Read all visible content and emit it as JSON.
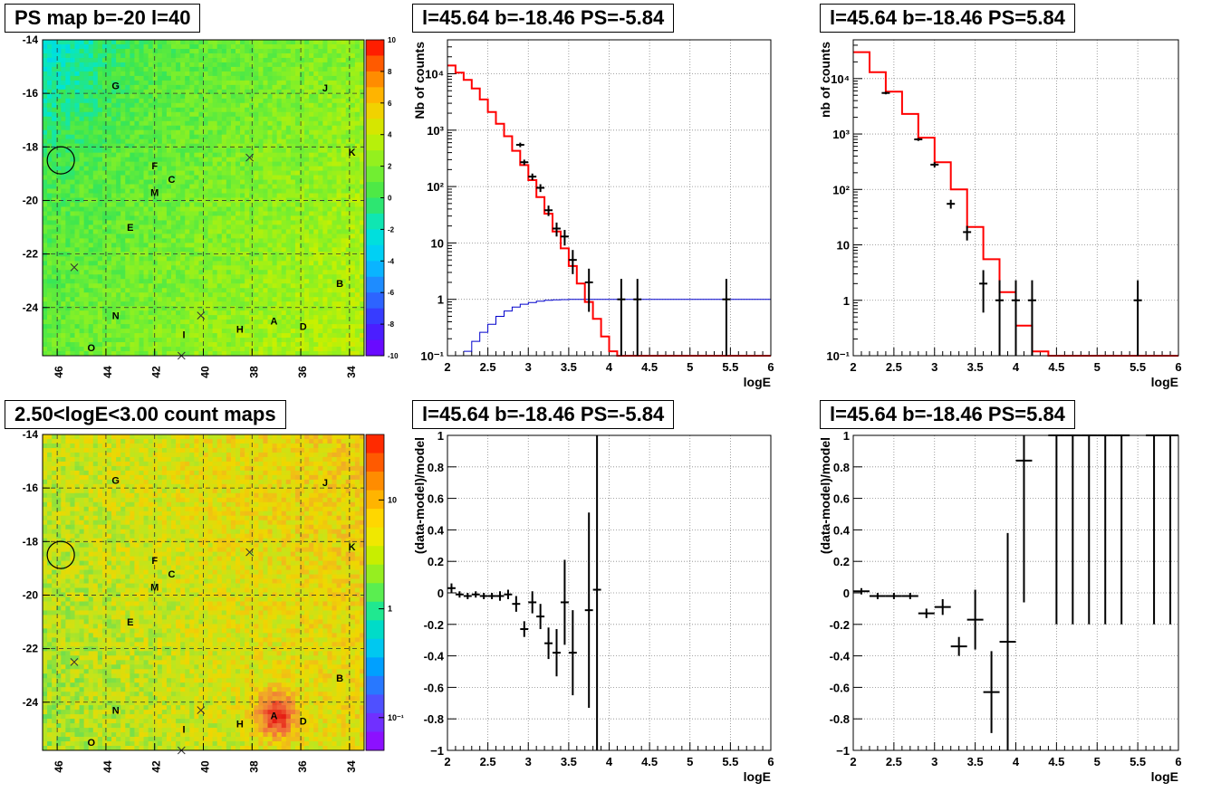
{
  "titles": {
    "ps_map": "PS map b=-20 l=40",
    "count_map": "2.50<logE<3.00 count maps",
    "spec_neg": "l=45.64 b=-18.46 PS=-5.84",
    "spec_pos": "l=45.64 b=-18.46 PS=5.84",
    "resid_neg": "l=45.64 b=-18.46 PS=-5.84",
    "resid_pos": "l=45.64 b=-18.46 PS=5.84"
  },
  "colors": {
    "model_line": "#ff0000",
    "exposure_line": "#0000cc",
    "data_marks": "#000000"
  },
  "chart_data": [
    {
      "id": "ps_map",
      "type": "heatmap",
      "x_ticks": [
        "46",
        "44",
        "42",
        "40",
        "38",
        "36",
        "34"
      ],
      "y_ticks": [
        "-14",
        "-16",
        "-18",
        "-20",
        "-22",
        "-24"
      ],
      "xlim": [
        46.6,
        33.4
      ],
      "ylim": [
        -25.8,
        -14
      ],
      "z_ticks": [
        "10",
        "8",
        "6",
        "4",
        "2",
        "0",
        "-2",
        "-4",
        "-6",
        "-8",
        "-10"
      ],
      "zlim": [
        -10,
        10
      ],
      "sources": [
        {
          "label": "G",
          "l": 43.6,
          "b": -15.7
        },
        {
          "label": "J",
          "l": 35.0,
          "b": -15.8
        },
        {
          "label": "K",
          "l": 33.9,
          "b": -18.2
        },
        {
          "label": "F",
          "l": 42.0,
          "b": -18.7
        },
        {
          "label": "C",
          "l": 41.3,
          "b": -19.2
        },
        {
          "label": "M",
          "l": 42.0,
          "b": -19.7
        },
        {
          "label": "E",
          "l": 43.0,
          "b": -21.0
        },
        {
          "label": "B",
          "l": 34.4,
          "b": -23.1
        },
        {
          "label": "N",
          "l": 43.6,
          "b": -24.3
        },
        {
          "label": "A",
          "l": 37.1,
          "b": -24.5
        },
        {
          "label": "D",
          "l": 35.9,
          "b": -24.7
        },
        {
          "label": "H",
          "l": 38.5,
          "b": -24.8
        },
        {
          "label": "I",
          "l": 40.8,
          "b": -25.0
        },
        {
          "label": "O",
          "l": 44.6,
          "b": -25.5
        }
      ],
      "crosses": [
        {
          "l": 38.1,
          "b": -18.4
        },
        {
          "l": 45.3,
          "b": -22.5
        },
        {
          "l": 40.1,
          "b": -24.3
        },
        {
          "l": 40.9,
          "b": -25.8
        }
      ],
      "circle": {
        "l": 46.0,
        "b": -18.5
      }
    },
    {
      "id": "count_map",
      "type": "heatmap",
      "x_ticks": [
        "46",
        "44",
        "42",
        "40",
        "38",
        "36",
        "34"
      ],
      "y_ticks": [
        "-14",
        "-16",
        "-18",
        "-20",
        "-22",
        "-24"
      ],
      "xlim": [
        46.6,
        33.4
      ],
      "ylim": [
        -25.8,
        -14
      ],
      "z_ticks": [
        "10",
        "1",
        "10⁻¹"
      ],
      "zscale": "log",
      "zlim": [
        0.05,
        40
      ],
      "hotspot": {
        "l": 37.1,
        "b": -24.4
      },
      "sources": [
        {
          "label": "G",
          "l": 43.6,
          "b": -15.7
        },
        {
          "label": "J",
          "l": 35.0,
          "b": -15.8
        },
        {
          "label": "K",
          "l": 33.9,
          "b": -18.2
        },
        {
          "label": "F",
          "l": 42.0,
          "b": -18.7
        },
        {
          "label": "C",
          "l": 41.3,
          "b": -19.2
        },
        {
          "label": "M",
          "l": 42.0,
          "b": -19.7
        },
        {
          "label": "E",
          "l": 43.0,
          "b": -21.0
        },
        {
          "label": "B",
          "l": 34.4,
          "b": -23.1
        },
        {
          "label": "N",
          "l": 43.6,
          "b": -24.3
        },
        {
          "label": "A",
          "l": 37.1,
          "b": -24.5
        },
        {
          "label": "D",
          "l": 35.9,
          "b": -24.7
        },
        {
          "label": "H",
          "l": 38.5,
          "b": -24.8
        },
        {
          "label": "I",
          "l": 40.8,
          "b": -25.0
        },
        {
          "label": "O",
          "l": 44.6,
          "b": -25.5
        }
      ],
      "crosses": [
        {
          "l": 38.1,
          "b": -18.4
        },
        {
          "l": 45.3,
          "b": -22.5
        },
        {
          "l": 40.1,
          "b": -24.3
        },
        {
          "l": 40.9,
          "b": -25.8
        }
      ],
      "circle": {
        "l": 46.0,
        "b": -18.5
      }
    },
    {
      "id": "spec_neg",
      "type": "line",
      "yscale": "log",
      "xlim": [
        2,
        6
      ],
      "ylim": [
        0.1,
        40000
      ],
      "x_ticks": [
        "2",
        "2.5",
        "3",
        "3.5",
        "4",
        "4.5",
        "5",
        "5.5",
        "6"
      ],
      "y_ticks": [
        {
          "v": 10000,
          "t": "10⁴"
        },
        {
          "v": 1000,
          "t": "10³"
        },
        {
          "v": 100,
          "t": "10²"
        },
        {
          "v": 10,
          "t": "10"
        },
        {
          "v": 1,
          "t": "1"
        },
        {
          "v": 0.1,
          "t": "10⁻¹"
        }
      ],
      "xlabel": "logE",
      "ylabel": "Nb of counts",
      "model_step": {
        "edges": [
          2,
          2.1,
          2.2,
          2.3,
          2.4,
          2.5,
          2.6,
          2.7,
          2.8,
          2.9,
          3,
          3.1,
          3.2,
          3.3,
          3.4,
          3.5,
          3.6,
          3.7,
          3.8,
          3.9,
          4,
          4.1,
          4.2,
          6
        ],
        "values": [
          14000,
          10500,
          7800,
          5500,
          3500,
          2100,
          1300,
          780,
          430,
          240,
          130,
          65,
          33,
          16,
          8,
          3.9,
          1.9,
          0.9,
          0.45,
          0.22,
          0.12,
          0.1,
          0.1
        ]
      },
      "exposure_step": {
        "edges": [
          2.2,
          2.3,
          2.4,
          2.5,
          2.6,
          2.7,
          2.8,
          2.9,
          3,
          3.1,
          3.2,
          3.3,
          3.4,
          3.5,
          3.6,
          6
        ],
        "values": [
          0.12,
          0.18,
          0.26,
          0.36,
          0.5,
          0.62,
          0.73,
          0.82,
          0.88,
          0.93,
          0.96,
          0.98,
          0.99,
          1,
          1,
          1
        ]
      },
      "points": [
        {
          "x": 2.9,
          "y": 550,
          "lo": 500,
          "hi": 600
        },
        {
          "x": 2.95,
          "y": 270,
          "lo": 240,
          "hi": 300
        },
        {
          "x": 3.05,
          "y": 150,
          "lo": 130,
          "hi": 170
        },
        {
          "x": 3.15,
          "y": 95,
          "lo": 80,
          "hi": 110
        },
        {
          "x": 3.25,
          "y": 38,
          "lo": 30,
          "hi": 46
        },
        {
          "x": 3.35,
          "y": 18,
          "lo": 13,
          "hi": 23
        },
        {
          "x": 3.45,
          "y": 13,
          "lo": 9,
          "hi": 17
        },
        {
          "x": 3.55,
          "y": 5,
          "lo": 2.8,
          "hi": 7.5
        },
        {
          "x": 3.75,
          "y": 2,
          "lo": 0.6,
          "hi": 3.5
        },
        {
          "x": 4.15,
          "y": 1,
          "lo": 0.1,
          "hi": 2.3
        },
        {
          "x": 4.35,
          "y": 1,
          "lo": 0.1,
          "hi": 2.3
        },
        {
          "x": 5.45,
          "y": 1,
          "lo": 0.1,
          "hi": 2.3
        }
      ]
    },
    {
      "id": "spec_pos",
      "type": "line",
      "yscale": "log",
      "xlim": [
        2,
        6
      ],
      "ylim": [
        0.1,
        50000
      ],
      "x_ticks": [
        "2",
        "2.5",
        "3",
        "3.5",
        "4",
        "4.5",
        "5",
        "5.5",
        "6"
      ],
      "y_ticks": [
        {
          "v": 10000,
          "t": "10⁴"
        },
        {
          "v": 1000,
          "t": "10³"
        },
        {
          "v": 100,
          "t": "10²"
        },
        {
          "v": 10,
          "t": "10"
        },
        {
          "v": 1,
          "t": "1"
        },
        {
          "v": 0.1,
          "t": "10⁻¹"
        }
      ],
      "xlabel": "logE",
      "ylabel": "nb of counts",
      "model_step": {
        "edges": [
          2,
          2.2,
          2.4,
          2.6,
          2.8,
          3,
          3.2,
          3.4,
          3.6,
          3.8,
          4,
          4.2,
          4.4,
          6
        ],
        "values": [
          30000,
          13000,
          5800,
          2300,
          860,
          310,
          100,
          21,
          5.5,
          1.4,
          0.35,
          0.12,
          0.1
        ]
      },
      "points": [
        {
          "x": 2.4,
          "y": 5500,
          "lo": 5200,
          "hi": 5800
        },
        {
          "x": 2.8,
          "y": 800,
          "lo": 750,
          "hi": 850
        },
        {
          "x": 3.0,
          "y": 280,
          "lo": 250,
          "hi": 310
        },
        {
          "x": 3.2,
          "y": 55,
          "lo": 45,
          "hi": 65
        },
        {
          "x": 3.4,
          "y": 17,
          "lo": 12,
          "hi": 22
        },
        {
          "x": 3.6,
          "y": 2,
          "lo": 0.6,
          "hi": 3.5
        },
        {
          "x": 3.8,
          "y": 1,
          "lo": 0.1,
          "hi": 2.3
        },
        {
          "x": 4.0,
          "y": 1,
          "lo": 0.1,
          "hi": 2.3
        },
        {
          "x": 4.2,
          "y": 1,
          "lo": 0.1,
          "hi": 2.3
        },
        {
          "x": 5.5,
          "y": 1,
          "lo": 0.1,
          "hi": 2.3
        }
      ]
    },
    {
      "id": "resid_neg",
      "type": "scatter",
      "xlim": [
        2,
        6
      ],
      "ylim": [
        -1,
        1
      ],
      "x_ticks": [
        "2",
        "2.5",
        "3",
        "3.5",
        "4",
        "4.5",
        "5",
        "5.5",
        "6"
      ],
      "y_ticks": [
        "1",
        "0.8",
        "0.6",
        "0.4",
        "0.2",
        "0",
        "-0.2",
        "-0.4",
        "-0.6",
        "-0.8",
        "−1"
      ],
      "xlabel": "logE",
      "ylabel": "(data-model)/model",
      "xhalf": 0.05,
      "points": [
        {
          "x": 2.05,
          "y": 0.03,
          "e": 0.03
        },
        {
          "x": 2.15,
          "y": -0.01,
          "e": 0.02
        },
        {
          "x": 2.25,
          "y": -0.02,
          "e": 0.02
        },
        {
          "x": 2.35,
          "y": -0.01,
          "e": 0.02
        },
        {
          "x": 2.45,
          "y": -0.02,
          "e": 0.02
        },
        {
          "x": 2.55,
          "y": -0.02,
          "e": 0.02
        },
        {
          "x": 2.65,
          "y": -0.02,
          "e": 0.03
        },
        {
          "x": 2.75,
          "y": -0.01,
          "e": 0.03
        },
        {
          "x": 2.85,
          "y": -0.07,
          "e": 0.05
        },
        {
          "x": 2.95,
          "y": -0.23,
          "e": 0.05
        },
        {
          "x": 3.05,
          "y": -0.06,
          "e": 0.07
        },
        {
          "x": 3.15,
          "y": -0.15,
          "e": 0.08
        },
        {
          "x": 3.25,
          "y": -0.32,
          "e": 0.1
        },
        {
          "x": 3.35,
          "y": -0.38,
          "e": 0.15
        },
        {
          "x": 3.45,
          "y": -0.06,
          "e": 0.27
        },
        {
          "x": 3.55,
          "y": -0.38,
          "e": 0.27
        },
        {
          "x": 3.75,
          "y": -0.11,
          "e": 0.62
        },
        {
          "x": 3.85,
          "y": 0.02,
          "e": 1.05
        }
      ]
    },
    {
      "id": "resid_pos",
      "type": "scatter",
      "xlim": [
        2,
        6
      ],
      "ylim": [
        -1,
        1
      ],
      "x_ticks": [
        "2",
        "2.5",
        "3",
        "3.5",
        "4",
        "4.5",
        "5",
        "5.5",
        "6"
      ],
      "y_ticks": [
        "1",
        "0.8",
        "0.6",
        "0.4",
        "0.2",
        "0",
        "-0.2",
        "-0.4",
        "-0.6",
        "-0.8",
        "−1"
      ],
      "xlabel": "logE",
      "ylabel": "(data-model)/model",
      "xhalf": 0.1,
      "points": [
        {
          "x": 2.1,
          "y": 0.01,
          "e": 0.02
        },
        {
          "x": 2.3,
          "y": -0.02,
          "e": 0.02
        },
        {
          "x": 2.5,
          "y": -0.02,
          "e": 0.02
        },
        {
          "x": 2.7,
          "y": -0.02,
          "e": 0.02
        },
        {
          "x": 2.9,
          "y": -0.13,
          "e": 0.03
        },
        {
          "x": 3.1,
          "y": -0.09,
          "e": 0.05
        },
        {
          "x": 3.3,
          "y": -0.34,
          "e": 0.06
        },
        {
          "x": 3.5,
          "y": -0.17,
          "e": 0.19
        },
        {
          "x": 3.7,
          "y": -0.63,
          "e": 0.26
        },
        {
          "x": 3.9,
          "y": -0.31,
          "e": 0.69
        },
        {
          "x": 4.1,
          "y": 0.84,
          "e": 0.9
        },
        {
          "x": 4.5,
          "y": 1,
          "e": 1.2
        },
        {
          "x": 4.7,
          "y": 1,
          "e": 1.2
        },
        {
          "x": 4.9,
          "y": 1,
          "e": 1.2
        },
        {
          "x": 5.1,
          "y": 1,
          "e": 1.2
        },
        {
          "x": 5.3,
          "y": 1,
          "e": 1.2
        },
        {
          "x": 5.7,
          "y": 1,
          "e": 1.2
        },
        {
          "x": 5.9,
          "y": 1,
          "e": 1.2
        }
      ]
    }
  ]
}
